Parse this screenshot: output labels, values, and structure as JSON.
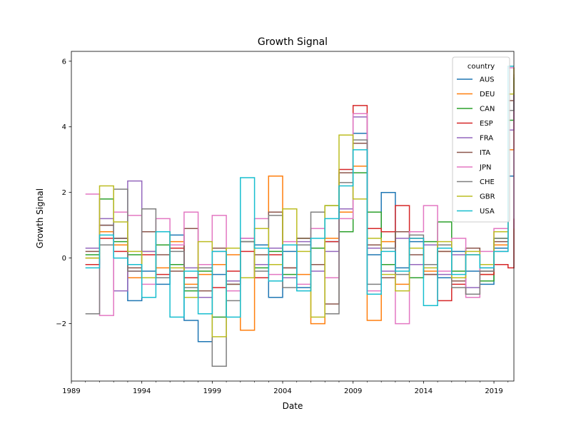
{
  "chart_data": {
    "type": "line",
    "drawstyle": "steps-post",
    "title": "Growth Signal",
    "xlabel": "Date",
    "ylabel": "Growth Signal",
    "xlim": [
      "1989-01",
      "2020-06"
    ],
    "ylim": [
      -3.75,
      6.3
    ],
    "x_ticks": [
      "1989",
      "1994",
      "1999",
      "2004",
      "2009",
      "2014",
      "2019"
    ],
    "y_ticks": [
      -2,
      0,
      2,
      4,
      6
    ],
    "y_tick_labels": [
      "−2",
      "0",
      "2",
      "4",
      "6"
    ],
    "grid": false,
    "legend": {
      "title": "country",
      "placement": "top-right"
    },
    "series": [
      {
        "name": "AUS",
        "color": "#1f77b4",
        "x": [
          "1990-01",
          "1991-01",
          "1992-01",
          "1993-01",
          "1994-01",
          "1995-01",
          "1996-01",
          "1997-01",
          "1998-01",
          "1999-01",
          "2000-01",
          "2001-01",
          "2002-01",
          "2003-01",
          "2004-01",
          "2005-01",
          "2006-01",
          "2007-01",
          "2008-01",
          "2009-01",
          "2010-01",
          "2011-01",
          "2012-01",
          "2013-01",
          "2014-01",
          "2015-01",
          "2016-01",
          "2017-01",
          "2018-01",
          "2019-01",
          "2020-01",
          "2020-06"
        ],
        "values": [
          -0.2,
          1.0,
          0.6,
          -1.3,
          -0.4,
          -0.8,
          0.7,
          -1.9,
          -2.55,
          -0.5,
          0.3,
          -0.6,
          0.4,
          -1.2,
          0.2,
          -0.9,
          0.3,
          0.5,
          1.5,
          3.8,
          0.1,
          2.0,
          -0.3,
          0.5,
          -0.2,
          -0.6,
          0.2,
          -0.4,
          -0.8,
          0.3,
          2.5,
          2.5
        ]
      },
      {
        "name": "DEU",
        "color": "#ff7f0e",
        "x": [
          "1990-01",
          "1991-01",
          "1992-01",
          "1993-01",
          "1994-01",
          "1995-01",
          "1996-01",
          "1997-01",
          "1998-01",
          "1999-01",
          "2000-01",
          "2001-01",
          "2002-01",
          "2003-01",
          "2004-01",
          "2005-01",
          "2006-01",
          "2007-01",
          "2008-01",
          "2009-01",
          "2010-01",
          "2011-01",
          "2012-01",
          "2013-01",
          "2014-01",
          "2015-01",
          "2016-01",
          "2017-01",
          "2018-01",
          "2019-01",
          "2020-01",
          "2020-06"
        ],
        "values": [
          0.0,
          0.8,
          0.4,
          -0.6,
          0.2,
          -0.3,
          0.5,
          -0.8,
          -0.5,
          -0.2,
          0.1,
          -2.2,
          0.9,
          2.5,
          0.4,
          -0.5,
          -2.0,
          0.6,
          1.4,
          2.8,
          -1.9,
          0.5,
          -0.8,
          0.3,
          -0.4,
          0.2,
          -0.7,
          0.1,
          -0.5,
          0.4,
          3.3,
          5.4
        ]
      },
      {
        "name": "CAN",
        "color": "#2ca02c",
        "x": [
          "1990-01",
          "1991-01",
          "1992-01",
          "1993-01",
          "1994-01",
          "1995-01",
          "1996-01",
          "1997-01",
          "1998-01",
          "1999-01",
          "2000-01",
          "2001-01",
          "2002-01",
          "2003-01",
          "2004-01",
          "2005-01",
          "2006-01",
          "2007-01",
          "2008-01",
          "2009-01",
          "2010-01",
          "2011-01",
          "2012-01",
          "2013-01",
          "2014-01",
          "2015-01",
          "2016-01",
          "2017-01",
          "2018-01",
          "2019-01",
          "2020-01",
          "2020-06"
        ],
        "values": [
          0.1,
          1.8,
          0.5,
          0.1,
          -0.6,
          0.4,
          -0.2,
          -1.0,
          -0.4,
          -1.8,
          -0.8,
          0.5,
          -0.3,
          0.2,
          -0.5,
          0.6,
          0.3,
          1.6,
          0.8,
          2.6,
          1.4,
          -0.2,
          0.8,
          -0.6,
          0.5,
          1.1,
          -0.4,
          0.3,
          -0.7,
          0.6,
          4.2,
          5.5
        ]
      },
      {
        "name": "ESP",
        "color": "#d62728",
        "x": [
          "1990-01",
          "1991-01",
          "1992-01",
          "1993-01",
          "1994-01",
          "1995-01",
          "1996-01",
          "1997-01",
          "1998-01",
          "1999-01",
          "2000-01",
          "2001-01",
          "2002-01",
          "2003-01",
          "2004-01",
          "2005-01",
          "2006-01",
          "2007-01",
          "2008-01",
          "2009-01",
          "2010-01",
          "2011-01",
          "2012-01",
          "2013-01",
          "2014-01",
          "2015-01",
          "2016-01",
          "2017-01",
          "2018-01",
          "2019-01",
          "2020-01",
          "2020-06"
        ],
        "values": [
          -0.2,
          0.6,
          0.2,
          -0.4,
          0.1,
          -0.5,
          0.3,
          -0.6,
          -0.2,
          -0.9,
          -0.4,
          0.2,
          -0.6,
          0.1,
          -0.3,
          0.4,
          -0.2,
          0.5,
          2.7,
          4.65,
          0.9,
          0.8,
          1.6,
          0.6,
          -0.5,
          -1.3,
          -0.8,
          -1.1,
          -0.5,
          -0.2,
          -0.3,
          1.2
        ]
      },
      {
        "name": "FRA",
        "color": "#9467bd",
        "x": [
          "1990-01",
          "1991-01",
          "1992-01",
          "1993-01",
          "1994-01",
          "1995-01",
          "1996-01",
          "1997-01",
          "1998-01",
          "1999-01",
          "2000-01",
          "2001-01",
          "2002-01",
          "2003-01",
          "2004-01",
          "2005-01",
          "2006-01",
          "2007-01",
          "2008-01",
          "2009-01",
          "2010-01",
          "2011-01",
          "2012-01",
          "2013-01",
          "2014-01",
          "2015-01",
          "2016-01",
          "2017-01",
          "2018-01",
          "2019-01",
          "2020-01",
          "2020-06"
        ],
        "values": [
          0.3,
          1.2,
          -1.0,
          2.35,
          0.2,
          -0.6,
          0.4,
          -0.3,
          -1.2,
          0.2,
          -0.7,
          0.6,
          -0.2,
          0.3,
          -0.6,
          0.5,
          -0.4,
          0.2,
          1.5,
          4.3,
          0.3,
          -0.4,
          0.6,
          -0.2,
          0.4,
          -0.5,
          0.1,
          -0.9,
          -0.3,
          0.2,
          3.9,
          5.3
        ]
      },
      {
        "name": "ITA",
        "color": "#8c564b",
        "x": [
          "1990-01",
          "1991-01",
          "1992-01",
          "1993-01",
          "1994-01",
          "1995-01",
          "1996-01",
          "1997-01",
          "1998-01",
          "1999-01",
          "2000-01",
          "2001-01",
          "2002-01",
          "2003-01",
          "2004-01",
          "2005-01",
          "2006-01",
          "2007-01",
          "2008-01",
          "2009-01",
          "2010-01",
          "2011-01",
          "2012-01",
          "2013-01",
          "2014-01",
          "2015-01",
          "2016-01",
          "2017-01",
          "2018-01",
          "2019-01",
          "2020-01",
          "2020-06"
        ],
        "values": [
          0.2,
          1.0,
          0.6,
          -0.3,
          0.8,
          0.1,
          -0.4,
          0.9,
          -1.0,
          0.3,
          -0.8,
          0.5,
          0.1,
          1.4,
          -0.3,
          0.6,
          -0.2,
          -1.4,
          2.6,
          3.5,
          0.4,
          -0.6,
          0.8,
          0.1,
          -0.5,
          0.2,
          -0.7,
          0.3,
          -0.4,
          0.5,
          4.8,
          5.6
        ]
      },
      {
        "name": "JPN",
        "color": "#e377c2",
        "x": [
          "1990-01",
          "1991-01",
          "1992-01",
          "1993-01",
          "1994-01",
          "1995-01",
          "1996-01",
          "1997-01",
          "1998-01",
          "1999-01",
          "2000-01",
          "2001-01",
          "2002-01",
          "2003-01",
          "2004-01",
          "2005-01",
          "2006-01",
          "2007-01",
          "2008-01",
          "2009-01",
          "2010-01",
          "2011-01",
          "2012-01",
          "2013-01",
          "2014-01",
          "2015-01",
          "2016-01",
          "2017-01",
          "2018-01",
          "2019-01",
          "2020-01",
          "2020-06"
        ],
        "values": [
          1.95,
          -1.75,
          1.4,
          1.3,
          -0.8,
          1.2,
          0.4,
          1.4,
          -0.2,
          1.3,
          -1.0,
          0.6,
          1.2,
          -0.5,
          0.5,
          -0.8,
          0.9,
          -0.6,
          1.2,
          4.4,
          -1.0,
          0.3,
          -2.0,
          0.8,
          1.6,
          -0.4,
          0.6,
          -1.2,
          0.2,
          0.9,
          5.8,
          0.9
        ]
      },
      {
        "name": "CHE",
        "color": "#7f7f7f",
        "x": [
          "1990-01",
          "1991-01",
          "1992-01",
          "1993-01",
          "1994-01",
          "1995-01",
          "1996-01",
          "1997-01",
          "1998-01",
          "1999-01",
          "2000-01",
          "2001-01",
          "2002-01",
          "2003-01",
          "2004-01",
          "2005-01",
          "2006-01",
          "2007-01",
          "2008-01",
          "2009-01",
          "2010-01",
          "2011-01",
          "2012-01",
          "2013-01",
          "2014-01",
          "2015-01",
          "2016-01",
          "2017-01",
          "2018-01",
          "2019-01",
          "2020-01",
          "2020-06"
        ],
        "values": [
          -1.7,
          0.4,
          2.1,
          -0.4,
          1.5,
          -0.6,
          0.2,
          -0.9,
          -0.3,
          -3.3,
          -1.3,
          0.5,
          -0.4,
          1.3,
          -0.9,
          0.4,
          1.4,
          -1.7,
          2.3,
          3.6,
          -0.8,
          0.3,
          -0.5,
          0.7,
          -0.2,
          0.4,
          -0.9,
          -1.1,
          -0.4,
          0.6,
          4.5,
          5.5
        ]
      },
      {
        "name": "GBR",
        "color": "#bcbd22",
        "x": [
          "1990-01",
          "1991-01",
          "1992-01",
          "1993-01",
          "1994-01",
          "1995-01",
          "1996-01",
          "1997-01",
          "1998-01",
          "1999-01",
          "2000-01",
          "2001-01",
          "2002-01",
          "2003-01",
          "2004-01",
          "2005-01",
          "2006-01",
          "2007-01",
          "2008-01",
          "2009-01",
          "2010-01",
          "2011-01",
          "2012-01",
          "2013-01",
          "2014-01",
          "2015-01",
          "2016-01",
          "2017-01",
          "2018-01",
          "2019-01",
          "2020-01",
          "2020-06"
        ],
        "values": [
          0.0,
          2.2,
          1.1,
          0.2,
          -0.6,
          0.8,
          -0.3,
          -1.2,
          0.5,
          -2.4,
          0.3,
          -0.6,
          0.9,
          -0.2,
          1.5,
          0.2,
          -1.8,
          1.6,
          3.75,
          1.8,
          0.6,
          -0.5,
          -1.0,
          0.3,
          -0.3,
          0.5,
          -0.6,
          0.2,
          -0.2,
          0.8,
          5.0,
          5.8
        ]
      },
      {
        "name": "USA",
        "color": "#17becf",
        "x": [
          "1990-01",
          "1991-01",
          "1992-01",
          "1993-01",
          "1994-01",
          "1995-01",
          "1996-01",
          "1997-01",
          "1998-01",
          "1999-01",
          "2000-01",
          "2001-01",
          "2002-01",
          "2003-01",
          "2004-01",
          "2005-01",
          "2006-01",
          "2007-01",
          "2008-01",
          "2009-01",
          "2010-01",
          "2011-01",
          "2012-01",
          "2013-01",
          "2014-01",
          "2015-01",
          "2016-01",
          "2017-01",
          "2018-01",
          "2019-01",
          "2020-01",
          "2020-06"
        ],
        "values": [
          -0.3,
          0.7,
          0.0,
          -0.2,
          -1.2,
          0.8,
          -1.8,
          -0.4,
          -1.7,
          0.2,
          -1.8,
          2.45,
          0.3,
          -0.7,
          0.4,
          -1.0,
          0.6,
          1.2,
          2.2,
          3.3,
          -1.1,
          0.2,
          -0.4,
          0.6,
          -1.45,
          0.3,
          -0.5,
          0.1,
          -0.3,
          0.2,
          5.85,
          5.85
        ]
      }
    ]
  }
}
